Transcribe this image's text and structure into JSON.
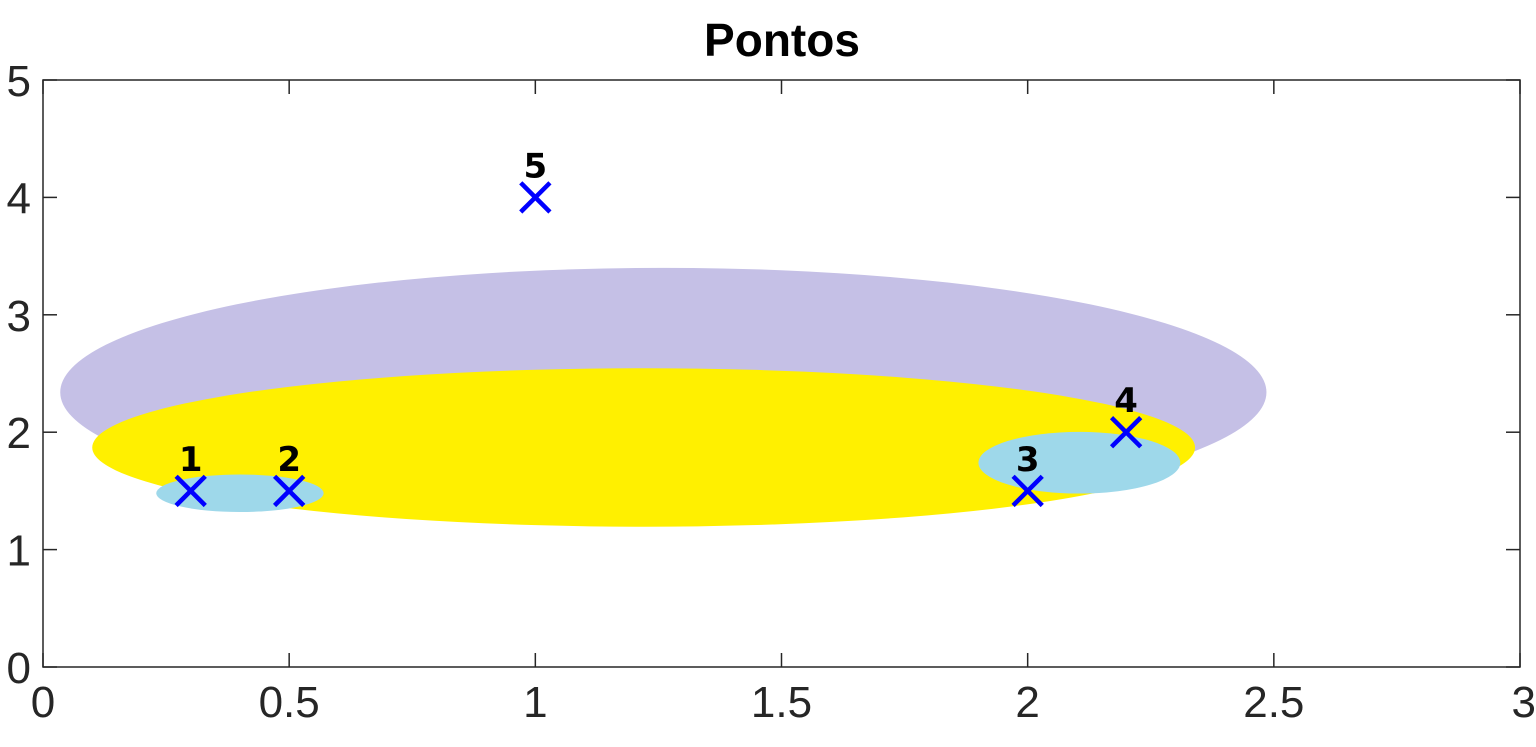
{
  "chart_data": {
    "type": "scatter",
    "title": "Pontos",
    "xlabel": "",
    "ylabel": "",
    "xlim": [
      0,
      3
    ],
    "ylim": [
      0,
      5
    ],
    "xticks": [
      0,
      0.5,
      1,
      1.5,
      2,
      2.5,
      3
    ],
    "xtick_labels": [
      "0",
      "0.5",
      "1",
      "1.5",
      "2",
      "2.5",
      "3"
    ],
    "yticks": [
      0,
      1,
      2,
      3,
      4,
      5
    ],
    "ytick_labels": [
      "0",
      "1",
      "2",
      "3",
      "4",
      "5"
    ],
    "grid": false,
    "box": true,
    "marker": "x",
    "marker_color": "#0000ff",
    "points": [
      {
        "label": "1",
        "x": 0.3,
        "y": 1.5
      },
      {
        "label": "2",
        "x": 0.5,
        "y": 1.5
      },
      {
        "label": "3",
        "x": 2.0,
        "y": 1.5
      },
      {
        "label": "4",
        "x": 2.2,
        "y": 2.0
      },
      {
        "label": "5",
        "x": 1.0,
        "y": 4.0
      }
    ],
    "regions": [
      {
        "cx": 1.26,
        "cy": 2.34,
        "rx": 1.225,
        "ry": 2.12,
        "color": "#c5c0e6"
      },
      {
        "cx": 1.22,
        "cy": 1.87,
        "rx": 1.12,
        "ry": 1.35,
        "color": "#fff000"
      },
      {
        "cx": 0.4,
        "cy": 1.48,
        "rx": 0.17,
        "ry": 0.32,
        "color": "#9ed8ea"
      },
      {
        "cx": 2.105,
        "cy": 1.74,
        "rx": 0.205,
        "ry": 0.525,
        "color": "#9ed8ea"
      }
    ]
  }
}
